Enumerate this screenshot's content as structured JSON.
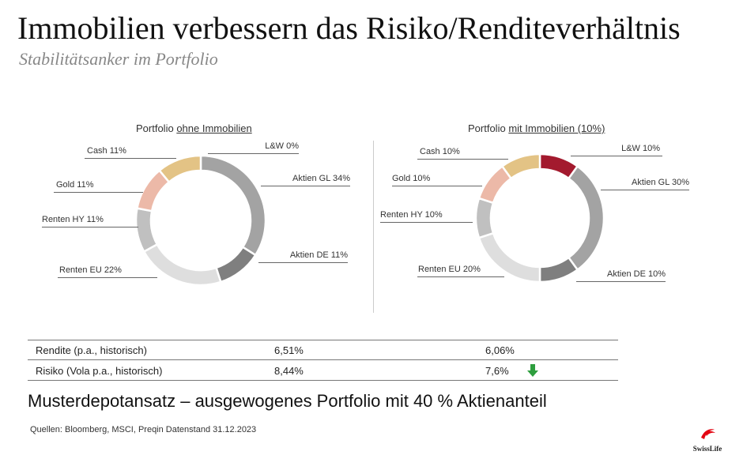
{
  "header": {
    "title": "Immobilien verbessern das Risiko/Renditeverhältnis",
    "subtitle": "Stabilitätsanker im Portfolio"
  },
  "chart_data": [
    {
      "type": "pie",
      "donut": true,
      "title_prefix": "Portfolio ",
      "title_underlined": "ohne Immobilien",
      "slices": [
        {
          "name": "L&W",
          "value": 0,
          "label": "L&W 0%",
          "color": "#a31a2e"
        },
        {
          "name": "Aktien GL",
          "value": 34,
          "label": "Aktien GL 34%",
          "color": "#a3a3a3"
        },
        {
          "name": "Aktien DE",
          "value": 11,
          "label": "Aktien DE 11%",
          "color": "#7f7f7f"
        },
        {
          "name": "Renten EU",
          "value": 22,
          "label": "Renten EU 22%",
          "color": "#dedede"
        },
        {
          "name": "Renten HY",
          "value": 11,
          "label": "Renten HY 11%",
          "color": "#c0c0c0"
        },
        {
          "name": "Gold",
          "value": 11,
          "label": "Gold 11%",
          "color": "#ecb9a8"
        },
        {
          "name": "Cash",
          "value": 11,
          "label": "Cash 11%",
          "color": "#e3c385"
        }
      ]
    },
    {
      "type": "pie",
      "donut": true,
      "title_prefix": "Portfolio ",
      "title_underlined": "mit Immobilien (10%)",
      "slices": [
        {
          "name": "L&W",
          "value": 10,
          "label": "L&W 10%",
          "color": "#a31a2e"
        },
        {
          "name": "Aktien GL",
          "value": 30,
          "label": "Aktien GL 30%",
          "color": "#a3a3a3"
        },
        {
          "name": "Aktien DE",
          "value": 10,
          "label": "Aktien DE 10%",
          "color": "#7f7f7f"
        },
        {
          "name": "Renten EU",
          "value": 20,
          "label": "Renten EU 20%",
          "color": "#dedede"
        },
        {
          "name": "Renten HY",
          "value": 10,
          "label": "Renten HY 10%",
          "color": "#c0c0c0"
        },
        {
          "name": "Gold",
          "value": 10,
          "label": "Gold 10%",
          "color": "#ecb9a8"
        },
        {
          "name": "Cash",
          "value": 10,
          "label": "Cash 10%",
          "color": "#e3c385"
        }
      ]
    }
  ],
  "table": {
    "rows": [
      {
        "label": "Rendite (p.a., historisch)",
        "ohne": "6,51%",
        "mit": "6,06%"
      },
      {
        "label": "Risiko (Vola p.a., historisch)",
        "ohne": "8,44%",
        "mit": "7,6%"
      }
    ]
  },
  "arrow_color": "#2e9e3e",
  "headline": "Musterdepotansatz – ausgewogenes Portfolio mit 40 % Aktienanteil",
  "source": "Quellen: Bloomberg, MSCI, Preqin Datenstand 31.12.2023",
  "logo": {
    "text": "SwissLife"
  }
}
